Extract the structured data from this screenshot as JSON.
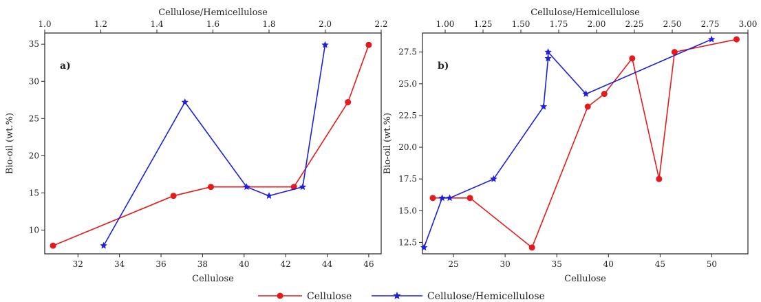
{
  "colors": {
    "cellulose": "#e41a1c",
    "ratio": "#1f1fdb",
    "axis": "#222222"
  },
  "legend": {
    "items": [
      {
        "label": "Cellulose",
        "color": "#e41a1c",
        "marker": "circle"
      },
      {
        "label": "Cellulose/Hemicellulose",
        "color": "#1f1fdb",
        "marker": "star"
      }
    ]
  },
  "chart_data": [
    {
      "panel_label": "a)",
      "type": "line",
      "ylabel": "Bio-oil (wt.%)",
      "xlabel": "Cellulose",
      "top_xlabel": "Cellulose/Hemicellulose",
      "ylim": [
        6.8,
        36.5
      ],
      "yticks": [
        10,
        15,
        20,
        25,
        30,
        35
      ],
      "xlim": [
        30.4,
        46.6
      ],
      "xticks": [
        32,
        34,
        36,
        38,
        40,
        42,
        44,
        46
      ],
      "top_xlim": [
        1.0,
        2.2
      ],
      "top_xticks": [
        "1.0",
        "1.2",
        "1.4",
        "1.6",
        "1.8",
        "2.0",
        "2.2"
      ],
      "series": [
        {
          "name": "Cellulose",
          "axis": "bottom",
          "marker": "circle",
          "points": [
            [
              30.8,
              7.9
            ],
            [
              36.6,
              14.6
            ],
            [
              38.4,
              15.8
            ],
            [
              42.4,
              15.8
            ],
            [
              45.0,
              27.2
            ],
            [
              46.0,
              34.9
            ]
          ]
        },
        {
          "name": "Cellulose/Hemicellulose",
          "axis": "top",
          "marker": "star",
          "points": [
            [
              1.21,
              7.9
            ],
            [
              1.5,
              27.2
            ],
            [
              1.72,
              15.8
            ],
            [
              1.8,
              14.6
            ],
            [
              1.92,
              15.8
            ],
            [
              2.0,
              34.9
            ]
          ]
        }
      ]
    },
    {
      "panel_label": "b)",
      "type": "line",
      "ylabel": "Bio-oil (wt.%)",
      "xlabel": "Cellulose",
      "top_xlabel": "Cellulose/Hemicellulose",
      "ylim": [
        11.6,
        29.0
      ],
      "yticks": [
        "12.5",
        "15.0",
        "17.5",
        "20.0",
        "22.5",
        "25.0",
        "27.5"
      ],
      "xlim": [
        22.0,
        53.5
      ],
      "xticks": [
        25,
        30,
        35,
        40,
        45,
        50
      ],
      "top_xlim": [
        0.85,
        3.0
      ],
      "top_xticks": [
        "1.00",
        "1.25",
        "1.50",
        "1.75",
        "2.00",
        "2.25",
        "2.50",
        "2.75",
        "3.00"
      ],
      "series": [
        {
          "name": "Cellulose",
          "axis": "bottom",
          "marker": "circle",
          "points": [
            [
              23.0,
              16.0
            ],
            [
              26.6,
              16.0
            ],
            [
              32.6,
              12.1
            ],
            [
              38.0,
              23.2
            ],
            [
              39.6,
              24.2
            ],
            [
              42.3,
              27.0
            ],
            [
              44.9,
              17.5
            ],
            [
              46.4,
              27.5
            ],
            [
              52.4,
              28.5
            ]
          ]
        },
        {
          "name": "Cellulose/Hemicellulose",
          "axis": "top",
          "marker": "star",
          "points": [
            [
              0.86,
              12.1
            ],
            [
              0.98,
              16.0
            ],
            [
              1.03,
              16.0
            ],
            [
              1.32,
              17.5
            ],
            [
              1.65,
              23.2
            ],
            [
              1.68,
              27.0
            ],
            [
              1.68,
              27.5
            ],
            [
              1.93,
              24.2
            ],
            [
              2.76,
              28.5
            ]
          ]
        }
      ]
    }
  ]
}
